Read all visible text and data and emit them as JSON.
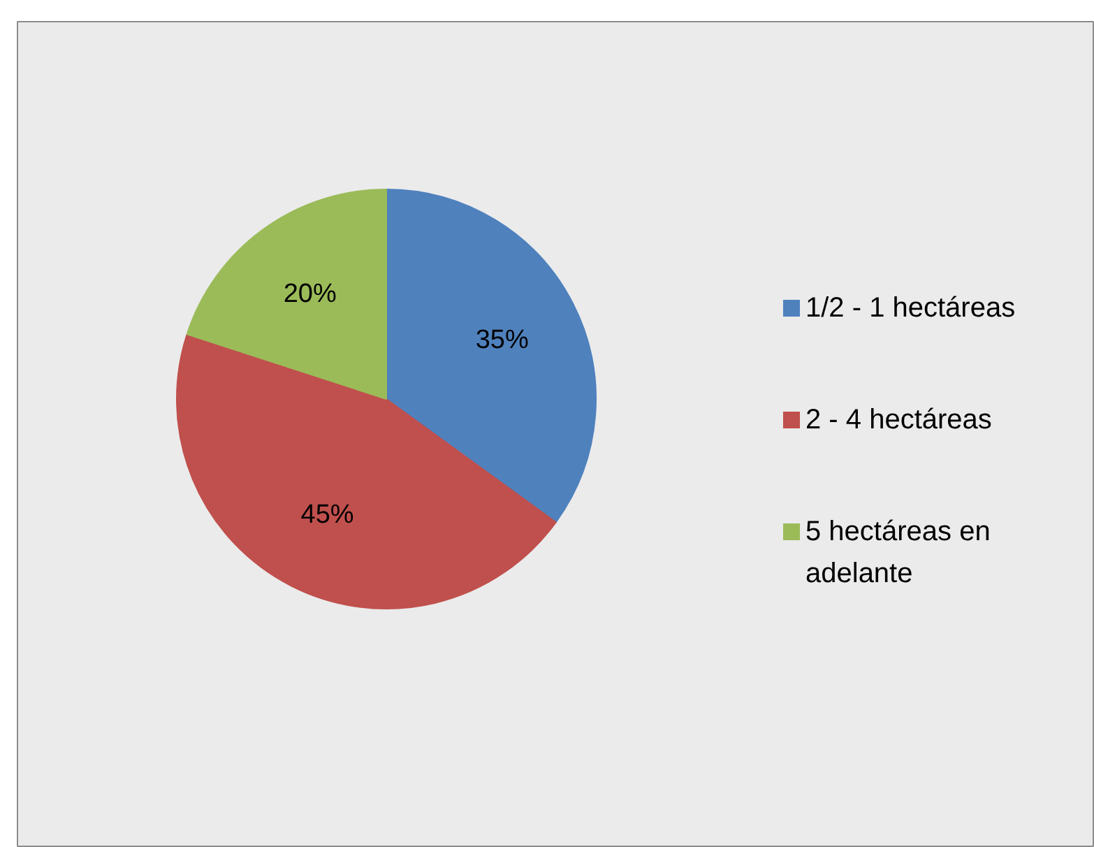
{
  "chart_data": {
    "type": "pie",
    "categories": [
      "1/2  -  1 hectáreas",
      "2   -   4 hectáreas",
      "5  hectáreas en adelante"
    ],
    "values": [
      35,
      45,
      20
    ],
    "colors": [
      "#4f81bd",
      "#c0504d",
      "#9bbb59"
    ],
    "value_labels": [
      "35%",
      "45%",
      "20%"
    ],
    "legend": "right"
  }
}
